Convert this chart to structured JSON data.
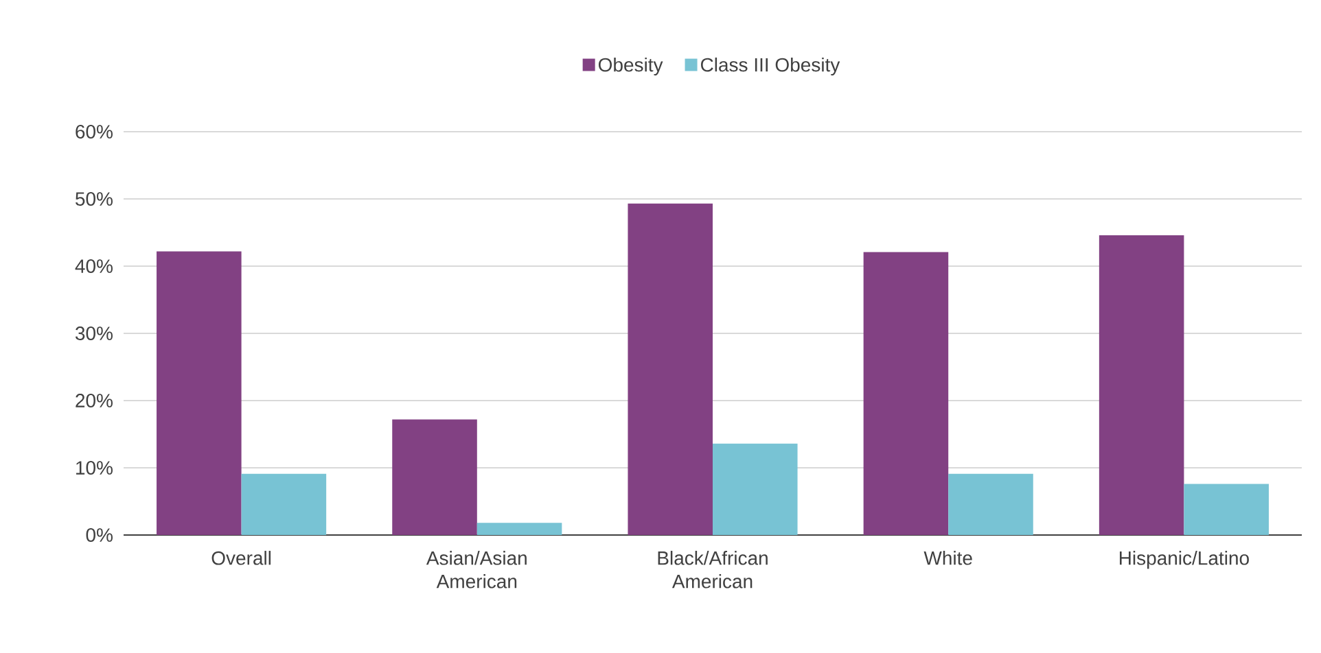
{
  "chart_data": {
    "type": "bar",
    "categories": [
      "Overall",
      "Asian/Asian American",
      "Black/African American",
      "White",
      "Hispanic/Latino"
    ],
    "series": [
      {
        "name": "Obesity",
        "color": "#824183",
        "values": [
          42.2,
          17.2,
          49.3,
          42.1,
          44.6
        ]
      },
      {
        "name": "Class III Obesity",
        "color": "#78c3d4",
        "values": [
          9.1,
          1.8,
          13.6,
          9.1,
          7.6
        ]
      }
    ],
    "ylim": [
      0,
      60
    ],
    "yticks": [
      {
        "value": 0,
        "label": "0%"
      },
      {
        "value": 10,
        "label": "10%"
      },
      {
        "value": 20,
        "label": "20%"
      },
      {
        "value": 30,
        "label": "30%"
      },
      {
        "value": 40,
        "label": "40%"
      },
      {
        "value": 50,
        "label": "50%"
      },
      {
        "value": 60,
        "label": "60%"
      }
    ],
    "grid": "y",
    "legend": "top"
  }
}
